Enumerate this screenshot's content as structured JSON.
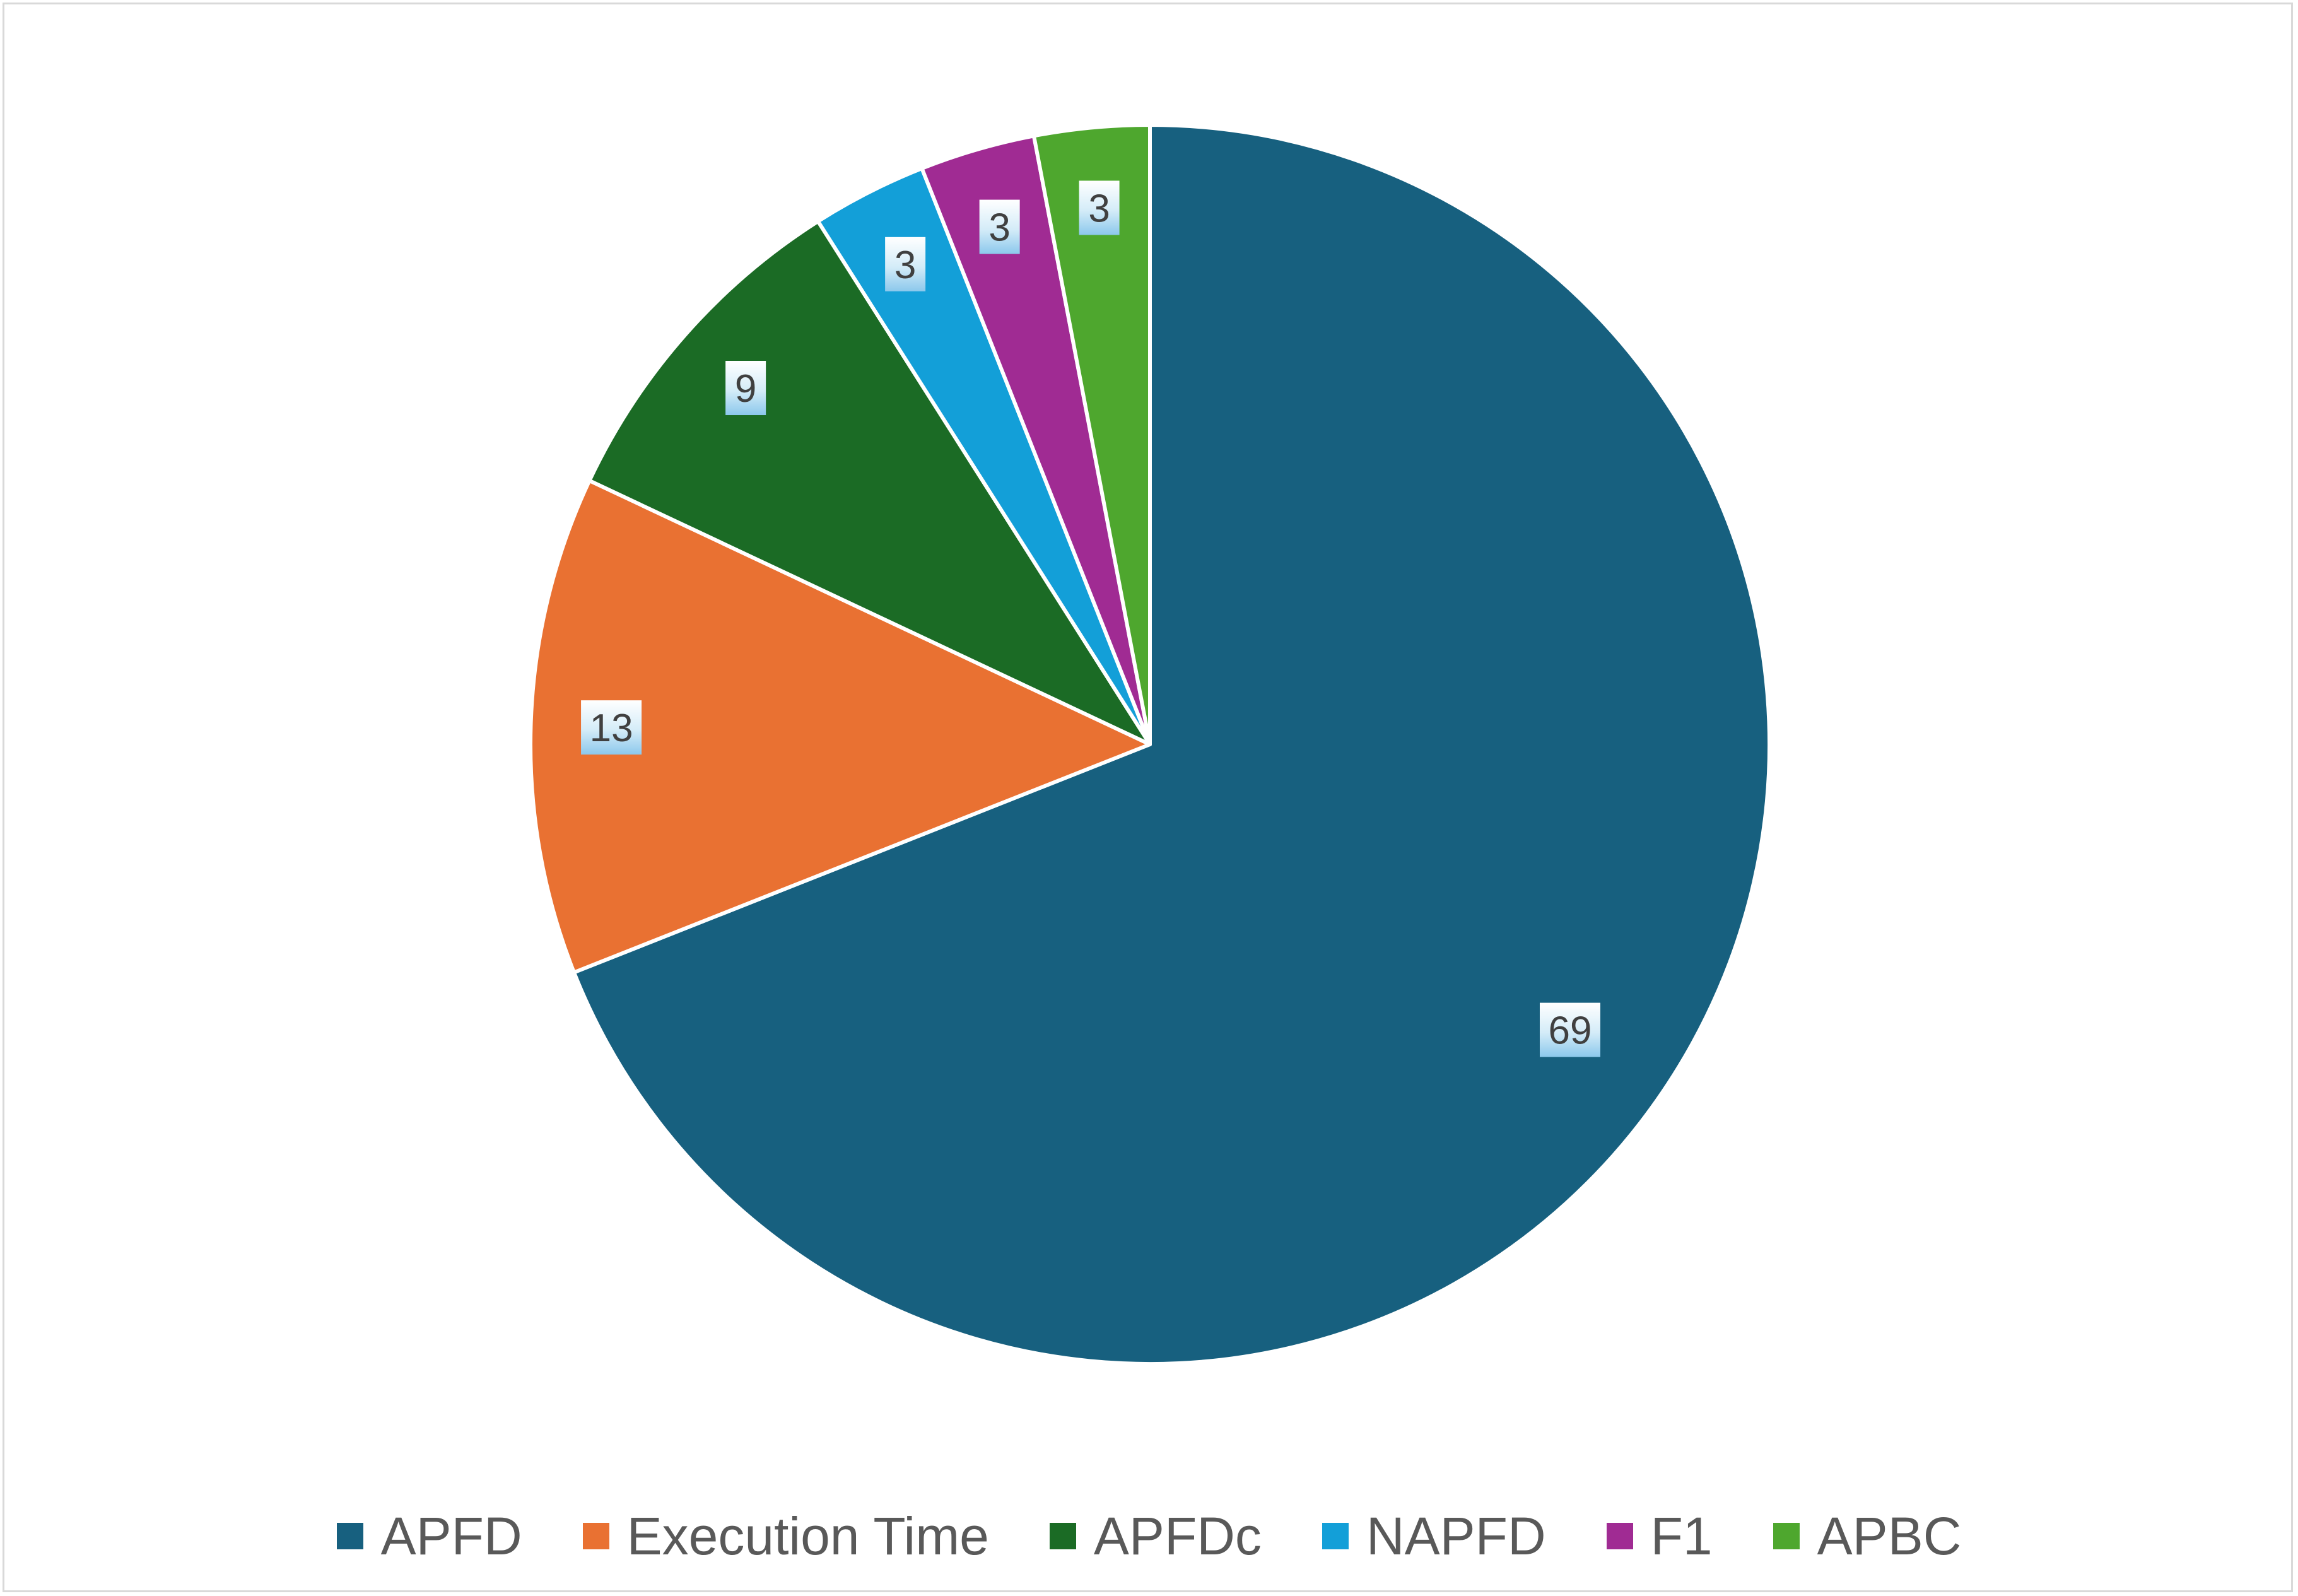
{
  "chart_data": {
    "type": "pie",
    "title": "",
    "categories": [
      "APFD",
      "Execution Time",
      "APFDc",
      "NAPFD",
      "F1",
      "APBC"
    ],
    "values": [
      69,
      13,
      9,
      3,
      3,
      3
    ],
    "colors": [
      "#17607f",
      "#e97132",
      "#1b6b25",
      "#139fd8",
      "#a02b93",
      "#4ea72e"
    ],
    "legend_position": "bottom",
    "data_labels": true,
    "start_angle_deg": 0,
    "direction": "clockwise"
  }
}
